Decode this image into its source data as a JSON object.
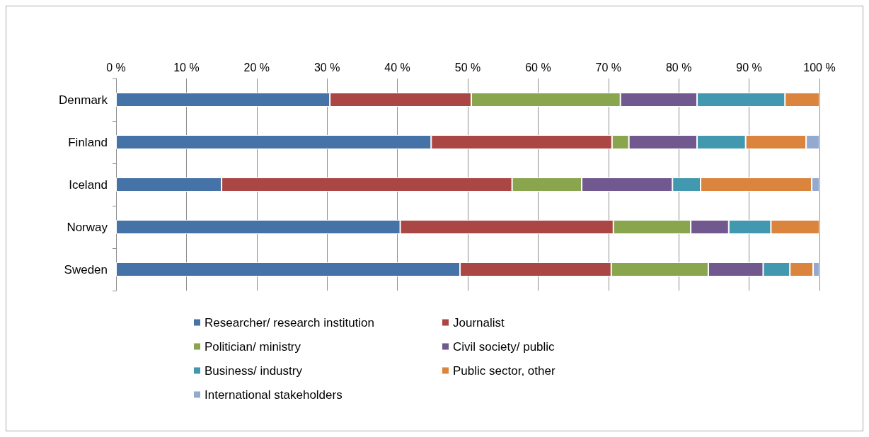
{
  "chart_data": {
    "type": "bar",
    "orientation": "horizontal",
    "stacked": true,
    "categories": [
      "Denmark",
      "Finland",
      "Iceland",
      "Norway",
      "Sweden"
    ],
    "series": [
      {
        "name": "Researcher/ research institution",
        "color": "#4572a7",
        "values": [
          30.4,
          44.8,
          15.0,
          40.4,
          48.9
        ]
      },
      {
        "name": "Journalist",
        "color": "#aa4643",
        "values": [
          20.1,
          25.7,
          41.3,
          30.3,
          21.5
        ]
      },
      {
        "name": "Politician/ ministry",
        "color": "#89a54e",
        "values": [
          21.2,
          2.4,
          9.9,
          11.0,
          13.8
        ]
      },
      {
        "name": "Civil society/ public",
        "color": "#71588f",
        "values": [
          10.9,
          9.7,
          12.9,
          5.4,
          7.8
        ]
      },
      {
        "name": "Business/ industry",
        "color": "#4198af",
        "values": [
          12.5,
          6.9,
          4.0,
          6.0,
          3.8
        ]
      },
      {
        "name": "Public sector, other",
        "color": "#db843d",
        "values": [
          4.9,
          8.6,
          15.8,
          6.9,
          3.3
        ]
      },
      {
        "name": "International stakeholders",
        "color": "#93a9cf",
        "values": [
          null,
          1.9,
          1.1,
          null,
          0.9
        ]
      }
    ],
    "xlim": [
      0,
      100
    ],
    "xticks": [
      {
        "value": 0,
        "label": "0 %"
      },
      {
        "value": 10,
        "label": "10 %"
      },
      {
        "value": 20,
        "label": "20 %"
      },
      {
        "value": 30,
        "label": "30 %"
      },
      {
        "value": 40,
        "label": "40 %"
      },
      {
        "value": 50,
        "label": "50 %"
      },
      {
        "value": 60,
        "label": "60 %"
      },
      {
        "value": 70,
        "label": "70 %"
      },
      {
        "value": 80,
        "label": "80 %"
      },
      {
        "value": 90,
        "label": "90 %"
      },
      {
        "value": 100,
        "label": "100 %"
      }
    ],
    "grid": "x",
    "legend": "bottom"
  }
}
